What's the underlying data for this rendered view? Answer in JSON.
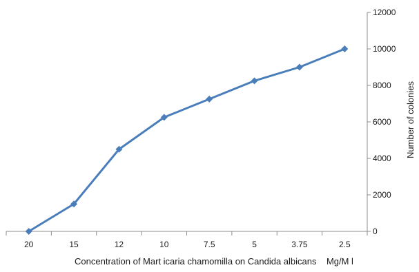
{
  "chart_data": {
    "type": "line",
    "categories": [
      "20",
      "15",
      "12",
      "10",
      "7.5",
      "5",
      "3.75",
      "2.5"
    ],
    "series": [
      {
        "values": [
          0,
          1500,
          4500,
          6250,
          7250,
          8250,
          9000,
          10000
        ]
      }
    ],
    "xlabel": "Concentration of Mart icaria chamomilla on Candida albicans    Mg/M l",
    "ylabel": "Number of colonies",
    "ylim": [
      0,
      12000
    ],
    "yticks": [
      "0",
      "2000",
      "4000",
      "6000",
      "8000",
      "10000",
      "12000"
    ],
    "y_axis_side": "right",
    "grid": false,
    "legend": "none",
    "line_color": "#4a7ebb",
    "marker": "diamond"
  }
}
